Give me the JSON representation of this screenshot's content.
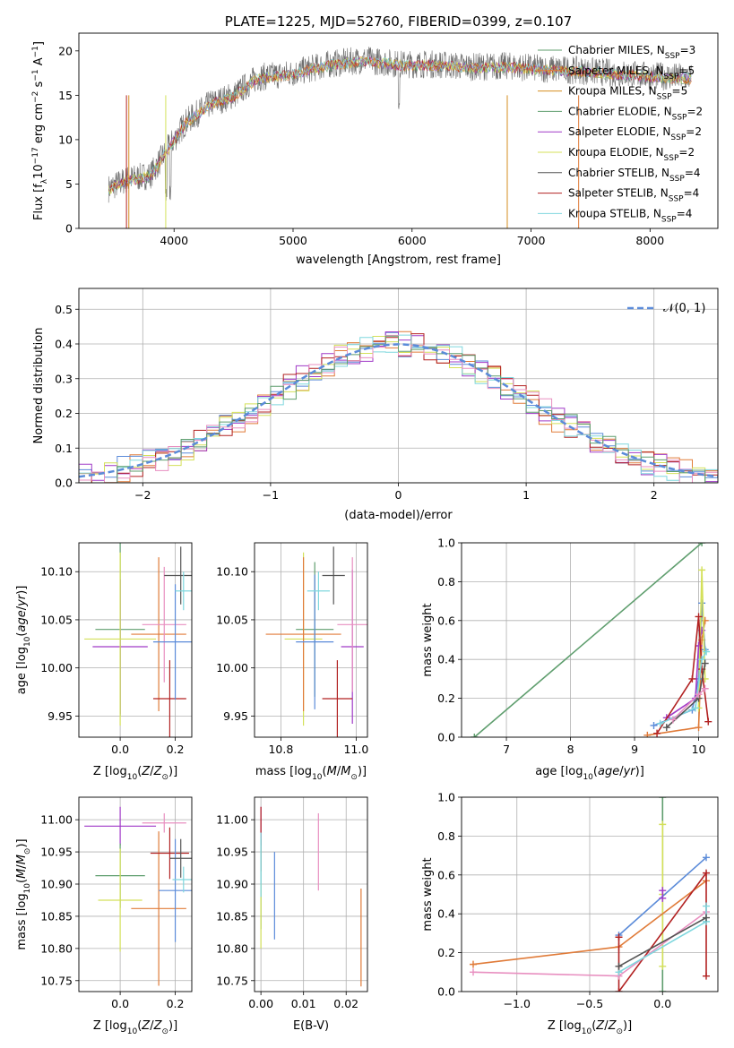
{
  "chart_data": [
    {
      "id": "spectrum",
      "type": "line",
      "title": "PLATE=1225, MJD=52760, FIBERID=0399, z=0.107",
      "xlabel": "wavelength [Angstrom, rest frame]",
      "ylabel": "Flux [f_λ 10^-17 erg cm^-2 s^-1 A^-1]",
      "xlim": [
        3200,
        8570
      ],
      "ylim": [
        0,
        22
      ],
      "xticks": [
        "4000",
        "5000",
        "6000",
        "7000",
        "8000"
      ],
      "xtick_values": [
        4000,
        5000,
        6000,
        7000,
        8000
      ],
      "yticks": [
        "0",
        "5",
        "10",
        "15",
        "20"
      ],
      "ytick_values": [
        0,
        5,
        10,
        15,
        20
      ],
      "legend_position": "right",
      "legend": [
        {
          "label": "Chabrier MILES, N_SSP=3",
          "color": "#5f9e6e"
        },
        {
          "label": "Salpeter MILES, N_SSP=5",
          "color": "#e07b39"
        },
        {
          "label": "Kroupa MILES, N_SSP=5",
          "color": "#d68e1f"
        },
        {
          "label": "Chabrier ELODIE, N_SSP=2",
          "color": "#5f9e6e"
        },
        {
          "label": "Salpeter ELODIE, N_SSP=2",
          "color": "#a03ac7"
        },
        {
          "label": "Kroupa ELODIE, N_SSP=2",
          "color": "#d4e05a"
        },
        {
          "label": "Chabrier STELIB, N_SSP=4",
          "color": "#555555"
        },
        {
          "label": "Salpeter STELIB, N_SSP=4",
          "color": "#b22222"
        },
        {
          "label": "Kroupa STELIB, N_SSP=4",
          "color": "#7fd7de"
        }
      ],
      "continuum": [
        [
          3450,
          4.5
        ],
        [
          3600,
          5.5
        ],
        [
          3800,
          6
        ],
        [
          3950,
          9
        ],
        [
          4100,
          12
        ],
        [
          4300,
          14
        ],
        [
          4500,
          15
        ],
        [
          4700,
          17
        ],
        [
          5000,
          17.5
        ],
        [
          5300,
          18.5
        ],
        [
          5600,
          19
        ],
        [
          5900,
          18.5
        ],
        [
          6200,
          18.5
        ],
        [
          6500,
          18.2
        ],
        [
          6800,
          18.3
        ],
        [
          7100,
          18
        ],
        [
          7400,
          17.8
        ],
        [
          7700,
          17.5
        ],
        [
          8000,
          17.2
        ],
        [
          8350,
          17
        ]
      ]
    },
    {
      "id": "residuals",
      "type": "line",
      "xlabel": "(data-model)/error",
      "ylabel": "Normed distribution",
      "xlim": [
        -2.5,
        2.5
      ],
      "ylim": [
        0,
        0.56
      ],
      "xticks": [
        "−2",
        "−1",
        "0",
        "1",
        "2"
      ],
      "xtick_values": [
        -2,
        -1,
        0,
        1,
        2
      ],
      "yticks": [
        "0.0",
        "0.1",
        "0.2",
        "0.3",
        "0.4",
        "0.5"
      ],
      "ytick_values": [
        0,
        0.1,
        0.2,
        0.3,
        0.4,
        0.5
      ],
      "grid": true,
      "legend_position": "top-right",
      "legend": [
        {
          "label": "𝒩(0, 1)",
          "color": "#5b8bd9"
        }
      ],
      "hist_colors": [
        "#e07b39",
        "#5b8bd9",
        "#a03ac7",
        "#d4e05a",
        "#b22222",
        "#7fd7de",
        "#e88fc0",
        "#5f9e6e"
      ]
    },
    {
      "id": "age_vs_Z",
      "type": "scatter",
      "xlabel": "Z [log10(Z/Z⊙)]",
      "ylabel": "age  [log10(age/yr)]",
      "xlim": [
        -0.15,
        0.26
      ],
      "ylim": [
        9.928,
        10.13
      ],
      "xticks": [
        "0.0",
        "0.2"
      ],
      "xtick_values": [
        0,
        0.2
      ],
      "yticks": [
        "9.95",
        "10.00",
        "10.05",
        "10.10"
      ],
      "ytick_values": [
        9.95,
        10,
        10.05,
        10.1
      ],
      "grid": true,
      "points": [
        {
          "x": 0.0,
          "y": 10.04,
          "xerr": 0.09,
          "yerr": 0.09,
          "color": "#5f9e6e"
        },
        {
          "x": 0.0,
          "y": 10.022,
          "xerr": 0.1,
          "yerr": 0.07,
          "color": "#a03ac7"
        },
        {
          "x": 0.0,
          "y": 10.03,
          "xerr": 0.13,
          "yerr": 0.09,
          "color": "#d4e05a"
        },
        {
          "x": 0.14,
          "y": 10.035,
          "xerr": 0.1,
          "yerr": 0.08,
          "color": "#e07b39"
        },
        {
          "x": 0.16,
          "y": 10.045,
          "xerr": 0.08,
          "yerr": 0.06,
          "color": "#e88fc0"
        },
        {
          "x": 0.18,
          "y": 9.968,
          "xerr": 0.06,
          "yerr": 0.04,
          "color": "#b22222"
        },
        {
          "x": 0.2,
          "y": 10.027,
          "xerr": 0.08,
          "yerr": 0.06,
          "color": "#5b8bd9"
        },
        {
          "x": 0.22,
          "y": 10.096,
          "xerr": 0.06,
          "yerr": 0.03,
          "color": "#555555"
        },
        {
          "x": 0.23,
          "y": 10.08,
          "xerr": 0.03,
          "yerr": 0.02,
          "color": "#7fd7de"
        }
      ]
    },
    {
      "id": "age_vs_mass",
      "type": "scatter",
      "xlabel": "mass [log10(M/M⊙)]",
      "ylabel": "",
      "xlim": [
        10.73,
        11.03
      ],
      "ylim": [
        9.928,
        10.13
      ],
      "xticks": [
        "10.8",
        "11.0"
      ],
      "xtick_values": [
        10.8,
        11
      ],
      "yticks": [
        "9.95",
        "10.00",
        "10.05",
        "10.10"
      ],
      "ytick_values": [
        9.95,
        10,
        10.05,
        10.1
      ],
      "grid": true,
      "points": [
        {
          "x": 10.89,
          "y": 10.04,
          "xerr": 0.05,
          "yerr": 0.07,
          "color": "#5f9e6e"
        },
        {
          "x": 10.99,
          "y": 10.022,
          "xerr": 0.03,
          "yerr": 0.08,
          "color": "#a03ac7"
        },
        {
          "x": 10.86,
          "y": 10.03,
          "xerr": 0.05,
          "yerr": 0.09,
          "color": "#d4e05a"
        },
        {
          "x": 10.86,
          "y": 10.035,
          "xerr": 0.1,
          "yerr": 0.08,
          "color": "#e07b39"
        },
        {
          "x": 10.99,
          "y": 10.045,
          "xerr": 0.04,
          "yerr": 0.07,
          "color": "#e88fc0"
        },
        {
          "x": 10.95,
          "y": 9.968,
          "xerr": 0.04,
          "yerr": 0.04,
          "color": "#b22222"
        },
        {
          "x": 10.89,
          "y": 10.027,
          "xerr": 0.05,
          "yerr": 0.07,
          "color": "#5b8bd9"
        },
        {
          "x": 10.94,
          "y": 10.096,
          "xerr": 0.03,
          "yerr": 0.03,
          "color": "#555555"
        },
        {
          "x": 10.9,
          "y": 10.08,
          "xerr": 0.03,
          "yerr": 0.02,
          "color": "#7fd7de"
        }
      ]
    },
    {
      "id": "massweight_vs_age",
      "type": "line",
      "xlabel": "age  [log10(age/yr)]",
      "ylabel": "mass weight",
      "xlim": [
        6.3,
        10.3
      ],
      "ylim": [
        0,
        1
      ],
      "xticks": [
        "7",
        "8",
        "9",
        "10"
      ],
      "xtick_values": [
        7,
        8,
        9,
        10
      ],
      "yticks": [
        "0.0",
        "0.2",
        "0.4",
        "0.6",
        "0.8",
        "1.0"
      ],
      "ytick_values": [
        0,
        0.2,
        0.4,
        0.6,
        0.8,
        1
      ],
      "grid": true,
      "series": [
        {
          "color": "#5f9e6e",
          "x": [
            6.5,
            10.05
          ],
          "y": [
            0.0,
            1.0
          ]
        },
        {
          "color": "#e07b39",
          "x": [
            9.2,
            10.0,
            10.05,
            10.1
          ],
          "y": [
            0.01,
            0.05,
            0.5,
            0.6
          ]
        },
        {
          "color": "#5b8bd9",
          "x": [
            9.3,
            9.9,
            10.0,
            10.05,
            10.1
          ],
          "y": [
            0.06,
            0.14,
            0.3,
            0.69,
            0.45
          ]
        },
        {
          "color": "#a03ac7",
          "x": [
            9.5,
            9.95,
            10.0,
            10.05
          ],
          "y": [
            0.1,
            0.2,
            0.47,
            0.55
          ]
        },
        {
          "color": "#d4e05a",
          "x": [
            10.0,
            10.05,
            10.1
          ],
          "y": [
            0.15,
            0.86,
            0.3
          ]
        },
        {
          "color": "#b22222",
          "x": [
            9.35,
            9.9,
            10.0,
            10.05,
            10.15
          ],
          "y": [
            0.02,
            0.3,
            0.62,
            0.35,
            0.08
          ]
        },
        {
          "color": "#7fd7de",
          "x": [
            9.4,
            9.95,
            10.05,
            10.12
          ],
          "y": [
            0.07,
            0.15,
            0.4,
            0.44
          ]
        },
        {
          "color": "#555555",
          "x": [
            9.5,
            10.0,
            10.1
          ],
          "y": [
            0.05,
            0.2,
            0.38
          ]
        },
        {
          "color": "#e88fc0",
          "x": [
            9.6,
            10.0,
            10.1
          ],
          "y": [
            0.09,
            0.22,
            0.25
          ]
        }
      ]
    },
    {
      "id": "mass_vs_Z",
      "type": "scatter",
      "xlabel": "Z [log10(Z/Z⊙)]",
      "ylabel": "mass [log10(M/M⊙)]",
      "xlim": [
        -0.15,
        0.26
      ],
      "ylim": [
        10.733,
        11.035
      ],
      "xticks": [
        "0.0",
        "0.2"
      ],
      "xtick_values": [
        0,
        0.2
      ],
      "yticks": [
        "10.75",
        "10.80",
        "10.85",
        "10.90",
        "10.95",
        "11.00"
      ],
      "ytick_values": [
        10.75,
        10.8,
        10.85,
        10.9,
        10.95,
        11
      ],
      "grid": true,
      "points": [
        {
          "x": 0.0,
          "y": 10.99,
          "xerr": 0.13,
          "yerr": 0.03,
          "color": "#a03ac7"
        },
        {
          "x": 0.0,
          "y": 10.913,
          "xerr": 0.09,
          "yerr": 0.05,
          "color": "#5f9e6e"
        },
        {
          "x": 0.0,
          "y": 10.875,
          "xerr": 0.08,
          "yerr": 0.08,
          "color": "#d4e05a"
        },
        {
          "x": 0.14,
          "y": 10.862,
          "xerr": 0.1,
          "yerr": 0.12,
          "color": "#e07b39"
        },
        {
          "x": 0.16,
          "y": 10.995,
          "xerr": 0.08,
          "yerr": 0.015,
          "color": "#e88fc0"
        },
        {
          "x": 0.18,
          "y": 10.948,
          "xerr": 0.07,
          "yerr": 0.04,
          "color": "#b22222"
        },
        {
          "x": 0.2,
          "y": 10.89,
          "xerr": 0.06,
          "yerr": 0.08,
          "color": "#5b8bd9"
        },
        {
          "x": 0.22,
          "y": 10.94,
          "xerr": 0.04,
          "yerr": 0.03,
          "color": "#555555"
        },
        {
          "x": 0.23,
          "y": 10.907,
          "xerr": 0.04,
          "yerr": 0.02,
          "color": "#7fd7de"
        }
      ]
    },
    {
      "id": "mass_vs_ebv",
      "type": "scatter",
      "xlabel": "E(B-V)",
      "ylabel": "",
      "xlim": [
        -0.0015,
        0.025
      ],
      "ylim": [
        10.733,
        11.035
      ],
      "xticks": [
        "0.00",
        "0.01",
        "0.02"
      ],
      "xtick_values": [
        0,
        0.01,
        0.02
      ],
      "yticks": [
        "10.75",
        "10.80",
        "10.85",
        "10.90",
        "10.95",
        "11.00"
      ],
      "ytick_values": [
        10.75,
        10.8,
        10.85,
        10.9,
        10.95,
        11
      ],
      "grid": true,
      "points": [
        {
          "x": 0.0,
          "y": 10.99,
          "yerr": 0.03,
          "color": "#a03ac7"
        },
        {
          "x": 0.0,
          "y": 10.97,
          "yerr": 0.05,
          "color": "#b22222"
        },
        {
          "x": 0.0,
          "y": 10.9,
          "yerr": 0.07,
          "color": "#5f9e6e"
        },
        {
          "x": 0.0,
          "y": 10.85,
          "yerr": 0.05,
          "color": "#d4e05a"
        },
        {
          "x": 0.0,
          "y": 10.93,
          "yerr": 0.05,
          "color": "#7fd7de"
        },
        {
          "x": 0.0032,
          "y": 10.882,
          "yerr": 0.068,
          "color": "#5b8bd9"
        },
        {
          "x": 0.0135,
          "y": 10.95,
          "yerr": 0.06,
          "color": "#e88fc0"
        },
        {
          "x": 0.0235,
          "y": 10.817,
          "yerr": 0.076,
          "color": "#e07b39"
        }
      ]
    },
    {
      "id": "massweight_vs_Z",
      "type": "line",
      "xlabel": "Z [log10(Z/Z⊙)]",
      "ylabel": "mass weight",
      "xlim": [
        -1.38,
        0.38
      ],
      "ylim": [
        0,
        1
      ],
      "xticks": [
        "−1.0",
        "−0.5",
        "0.0"
      ],
      "xtick_values": [
        -1,
        -0.5,
        0
      ],
      "yticks": [
        "0.0",
        "0.2",
        "0.4",
        "0.6",
        "0.8",
        "1.0"
      ],
      "ytick_values": [
        0,
        0.2,
        0.4,
        0.6,
        0.8,
        1
      ],
      "grid": true,
      "series": [
        {
          "color": "#5f9e6e",
          "x": [
            0.0,
            0.0
          ],
          "y": [
            0.0,
            1.0
          ]
        },
        {
          "color": "#d4e05a",
          "x": [
            0.0,
            0.0,
            0.0
          ],
          "y": [
            0.13,
            0.86,
            0.5
          ]
        },
        {
          "color": "#e07b39",
          "x": [
            -1.3,
            -0.3,
            0.3
          ],
          "y": [
            0.14,
            0.23,
            0.57
          ]
        },
        {
          "color": "#5b8bd9",
          "x": [
            -0.3,
            0.3
          ],
          "y": [
            0.29,
            0.69
          ]
        },
        {
          "color": "#b22222",
          "x": [
            -0.3,
            -0.3,
            0.3,
            0.3
          ],
          "y": [
            0.28,
            0.0,
            0.61,
            0.08
          ]
        },
        {
          "color": "#e88fc0",
          "x": [
            -1.3,
            -0.3,
            0.3
          ],
          "y": [
            0.1,
            0.08,
            0.41
          ]
        },
        {
          "color": "#7fd7de",
          "x": [
            -0.3,
            0.3,
            0.3
          ],
          "y": [
            0.1,
            0.36,
            0.44
          ]
        },
        {
          "color": "#555555",
          "x": [
            -0.3,
            0.3
          ],
          "y": [
            0.13,
            0.38
          ]
        },
        {
          "color": "#a03ac7",
          "x": [
            0.0,
            0.0
          ],
          "y": [
            0.52,
            0.48
          ]
        }
      ]
    }
  ]
}
